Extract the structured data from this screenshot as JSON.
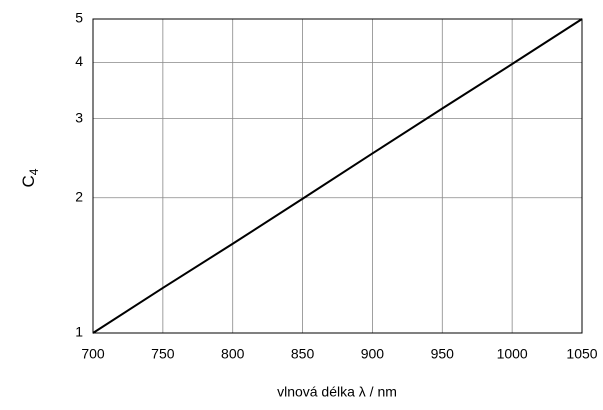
{
  "chart_data": {
    "type": "line",
    "xlabel": "vlnová délka  λ / nm",
    "ylabel": {
      "base": "C",
      "subscript": "4"
    },
    "x": [
      700,
      750,
      800,
      850,
      900,
      950,
      1000,
      1050
    ],
    "series": [
      {
        "color": "#000000",
        "values": [
          1,
          1.26,
          1.58,
          1.99,
          2.51,
          3.16,
          3.97,
          5
        ]
      }
    ],
    "xlim": [
      700,
      1050
    ],
    "xticks": [
      700,
      750,
      800,
      850,
      900,
      950,
      1000,
      1050
    ],
    "ylim": [
      1,
      5
    ],
    "yticks": [
      1,
      2,
      3,
      4,
      5
    ],
    "yscale": "log",
    "grid": true
  }
}
